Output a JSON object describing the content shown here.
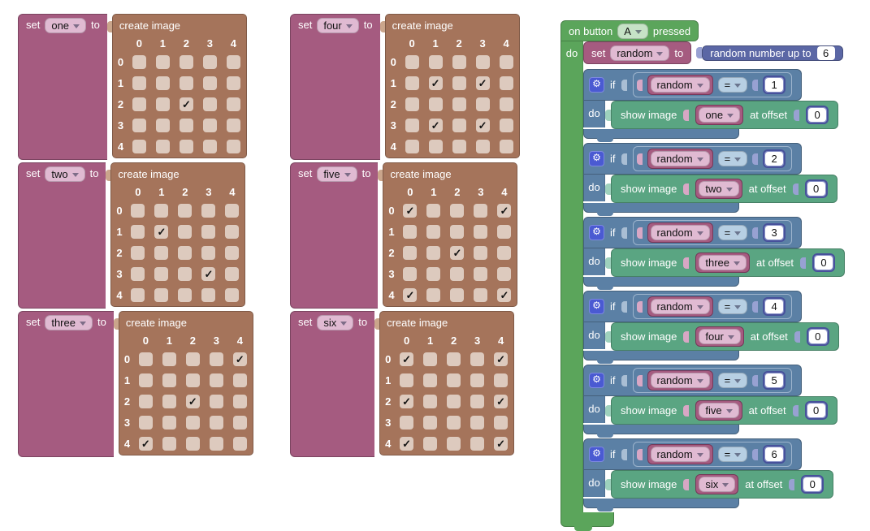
{
  "palette": {
    "variables": "#a55b80",
    "image": "#a5745b",
    "cell": "#ddcabe",
    "check": "#141414",
    "event": "#5ba55b",
    "logic": "#5b80a5",
    "math": "#5b67a5",
    "show": "#5aa582",
    "gear": "#4a5ad2"
  },
  "labels": {
    "set": "set",
    "to": "to",
    "on_button": "on button",
    "pressed": "pressed",
    "do": "do",
    "if": "if",
    "eq": "=",
    "show_image": "show image",
    "at_offset": "at offset",
    "random_var": "random",
    "random_number_up_to": "random number up to",
    "random_max": "6",
    "button": "A"
  },
  "grid": {
    "title": "create image",
    "cols": [
      "0",
      "1",
      "2",
      "3",
      "4"
    ],
    "rows": [
      "0",
      "1",
      "2",
      "3",
      "4"
    ]
  },
  "image_blocks": [
    {
      "name": "one",
      "checked": [
        [
          2,
          2
        ]
      ]
    },
    {
      "name": "two",
      "checked": [
        [
          1,
          1
        ],
        [
          3,
          3
        ]
      ]
    },
    {
      "name": "three",
      "checked": [
        [
          0,
          4
        ],
        [
          2,
          2
        ],
        [
          4,
          0
        ]
      ]
    },
    {
      "name": "four",
      "checked": [
        [
          1,
          1
        ],
        [
          1,
          3
        ],
        [
          3,
          1
        ],
        [
          3,
          3
        ]
      ]
    },
    {
      "name": "five",
      "checked": [
        [
          0,
          0
        ],
        [
          0,
          4
        ],
        [
          2,
          2
        ],
        [
          4,
          0
        ],
        [
          4,
          4
        ]
      ]
    },
    {
      "name": "six",
      "checked": [
        [
          0,
          0
        ],
        [
          0,
          4
        ],
        [
          2,
          0
        ],
        [
          2,
          4
        ],
        [
          4,
          0
        ],
        [
          4,
          4
        ]
      ]
    }
  ],
  "if_rows": [
    {
      "value": "1",
      "image": "one",
      "offset": "0"
    },
    {
      "value": "2",
      "image": "two",
      "offset": "0"
    },
    {
      "value": "3",
      "image": "three",
      "offset": "0"
    },
    {
      "value": "4",
      "image": "four",
      "offset": "0"
    },
    {
      "value": "5",
      "image": "five",
      "offset": "0"
    },
    {
      "value": "6",
      "image": "six",
      "offset": "0"
    }
  ],
  "layout_icons": {
    "gear_icon": "⚙",
    "check_icon": "✓",
    "dropdown_icon": "▾"
  }
}
